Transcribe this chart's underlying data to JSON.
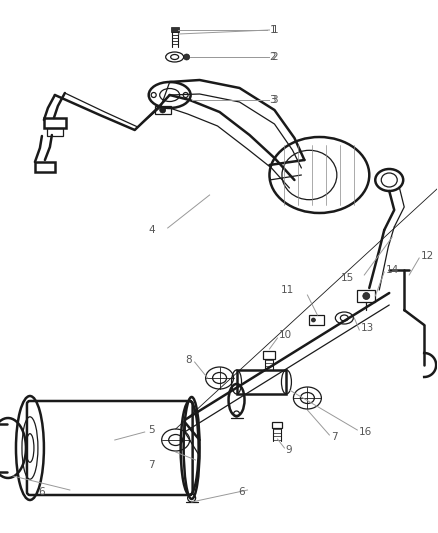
{
  "bg_color": "#ffffff",
  "line_color": "#1a1a1a",
  "label_color": "#555555",
  "label_fontsize": 7.5,
  "figsize": [
    4.38,
    5.33
  ],
  "dpi": 100
}
